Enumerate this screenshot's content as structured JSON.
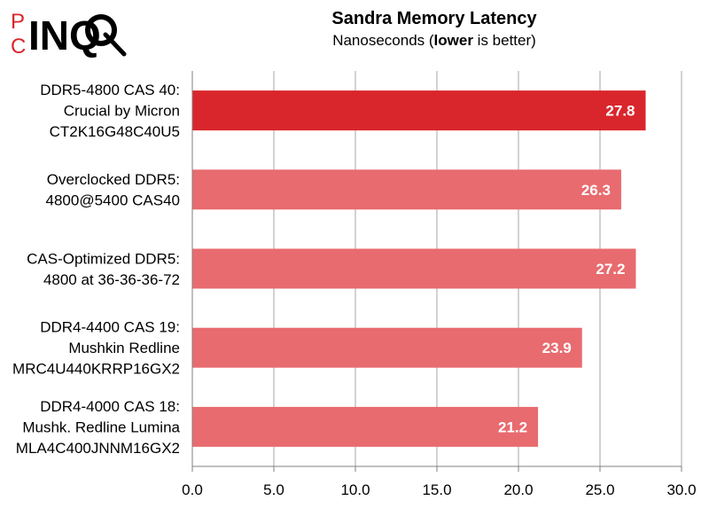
{
  "logo": {
    "text_top": "P",
    "text_bottom": "C",
    "text_main": "INQ"
  },
  "colors": {
    "highlight": "#d9262c",
    "bar": "#e86b6f",
    "grid": "#a6a6a6",
    "axis": "#7f7f7f"
  },
  "chart_data": {
    "type": "bar",
    "orientation": "horizontal",
    "title": "Sandra Memory Latency",
    "subtitle_parts": [
      "Nanoseconds (",
      "lower",
      " is better)"
    ],
    "categories": [
      [
        "DDR5-4800 CAS 40:",
        "Crucial by Micron",
        "CT2K16G48C40U5"
      ],
      [
        "Overclocked DDR5:",
        "4800@5400 CAS40"
      ],
      [
        "CAS-Optimized DDR5:",
        "4800 at 36-36-36-72"
      ],
      [
        "DDR4-4400 CAS 19:",
        "Mushkin Redline",
        "MRC4U440KRRP16GX2"
      ],
      [
        "DDR4-4000 CAS 18:",
        "Mushk. Redline Lumina",
        "MLA4C400JNNM16GX2"
      ]
    ],
    "values": [
      27.8,
      26.3,
      27.2,
      23.9,
      21.2
    ],
    "value_labels": [
      "27.8",
      "26.3",
      "27.2",
      "23.9",
      "21.2"
    ],
    "highlight_index": 0,
    "xlim": [
      0,
      30
    ],
    "xticks": [
      "0.0",
      "5.0",
      "10.0",
      "15.0",
      "20.0",
      "25.0",
      "30.0"
    ],
    "grid": true,
    "legend": "none"
  }
}
